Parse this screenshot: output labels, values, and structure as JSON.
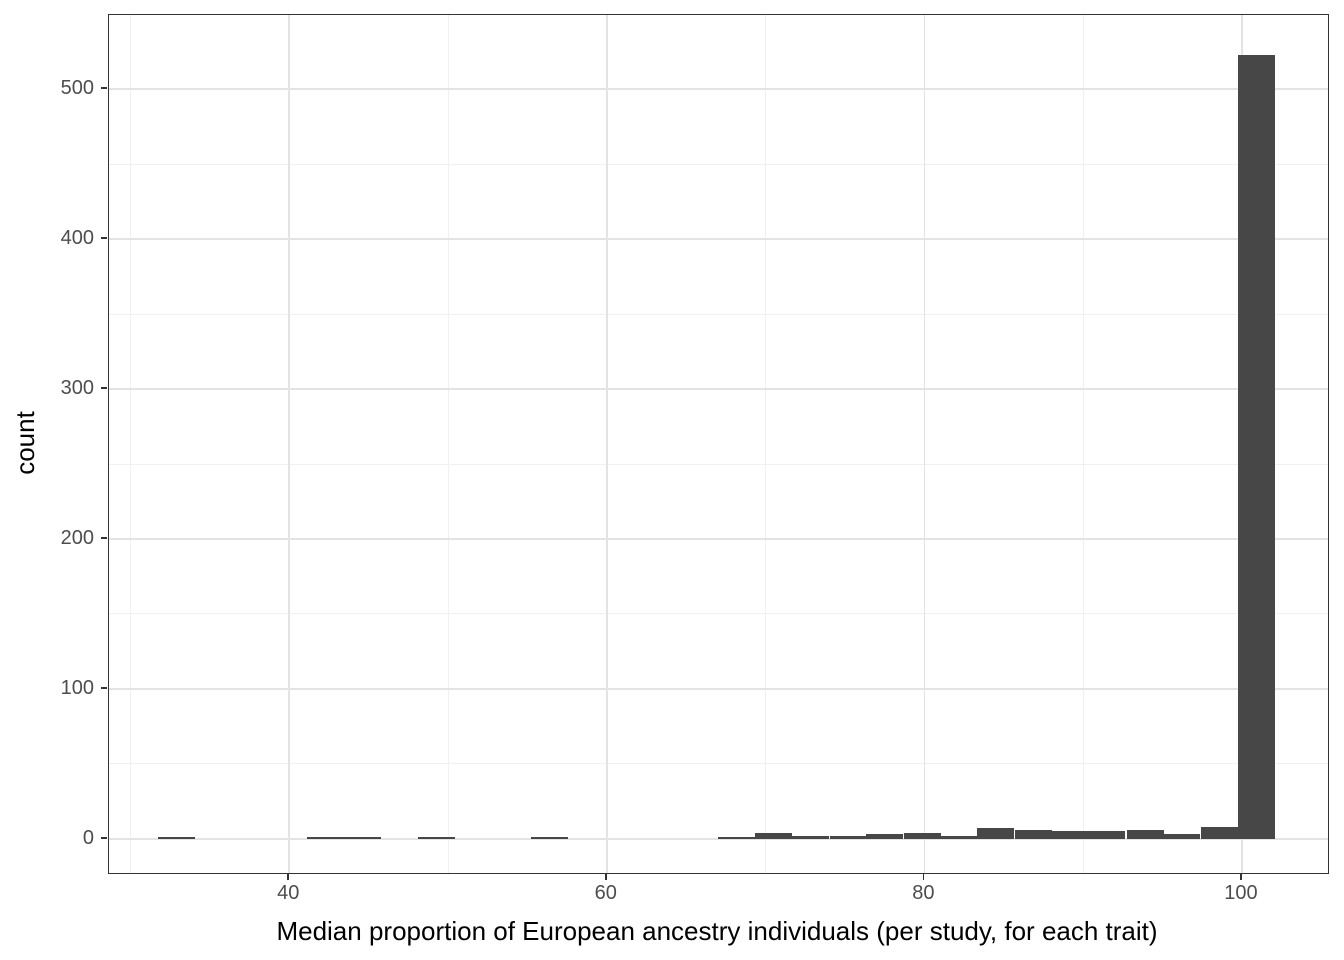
{
  "chart_data": {
    "type": "bar",
    "subtype": "histogram",
    "title": "",
    "xlabel": "Median proportion of European ancestry individuals (per study, for each trait)",
    "ylabel": "count",
    "xlim": [
      28.65,
      105.42
    ],
    "ylim": [
      -22.8,
      549.5
    ],
    "x_tick_values": [
      40,
      60,
      80,
      100
    ],
    "x_tick_labels": [
      "40",
      "60",
      "80",
      "100"
    ],
    "x_minor_gridlines": [
      30,
      50,
      70,
      90
    ],
    "y_tick_values": [
      0,
      100,
      200,
      300,
      400,
      500
    ],
    "y_tick_labels": [
      "0",
      "100",
      "200",
      "300",
      "400",
      "500"
    ],
    "y_minor_gridlines": [
      50,
      150,
      250,
      350,
      450
    ],
    "grid": "major-and-minor",
    "legend": "none",
    "binwidth": 2.3333,
    "bins": [
      {
        "center": 32.9,
        "count": 1
      },
      {
        "center": 42.3,
        "count": 1
      },
      {
        "center": 44.6,
        "count": 1
      },
      {
        "center": 49.3,
        "count": 1
      },
      {
        "center": 56.4,
        "count": 1
      },
      {
        "center": 68.2,
        "count": 1
      },
      {
        "center": 70.5,
        "count": 4
      },
      {
        "center": 72.8,
        "count": 2
      },
      {
        "center": 75.2,
        "count": 2
      },
      {
        "center": 77.5,
        "count": 3
      },
      {
        "center": 79.9,
        "count": 4
      },
      {
        "center": 82.2,
        "count": 2
      },
      {
        "center": 84.5,
        "count": 7
      },
      {
        "center": 86.9,
        "count": 6
      },
      {
        "center": 89.2,
        "count": 5
      },
      {
        "center": 91.5,
        "count": 5
      },
      {
        "center": 93.9,
        "count": 6
      },
      {
        "center": 96.2,
        "count": 3
      },
      {
        "center": 98.6,
        "count": 8
      },
      {
        "center": 100.9,
        "count": 523
      }
    ],
    "colors": {
      "bar_fill": "#474747",
      "panel_border": "#333333",
      "grid_major": "#e3e3e3",
      "grid_minor": "#f0f0f0",
      "tick_mark": "#333333",
      "tick_text": "#4d4d4d",
      "axis_title_text": "#000000",
      "background": "#ffffff"
    }
  }
}
